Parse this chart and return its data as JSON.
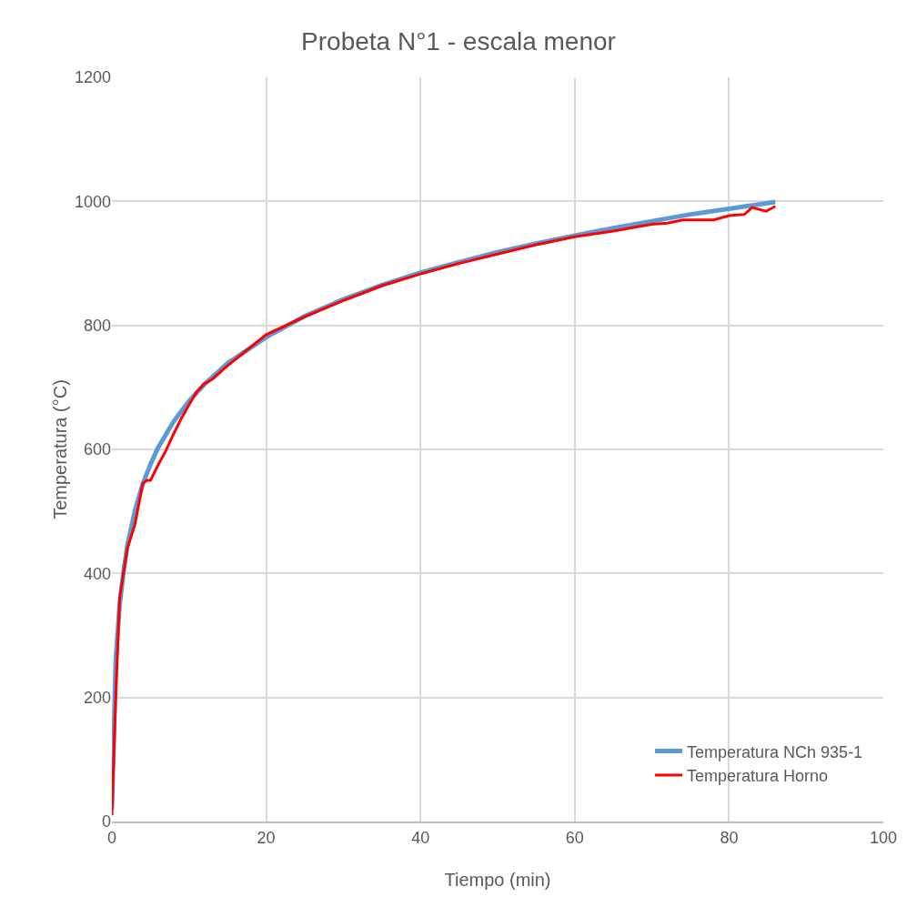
{
  "chart_data": {
    "type": "line",
    "title": "Probeta N°1 - escala menor",
    "xlabel": "Tiempo (min)",
    "ylabel": "Temperatura (°C)",
    "xlim": [
      0,
      100
    ],
    "xticks": [
      0,
      20,
      40,
      60,
      80,
      100
    ],
    "ylim": [
      0,
      1200
    ],
    "yticks": [
      0,
      200,
      400,
      600,
      800,
      1000,
      1200
    ],
    "grid": true,
    "legend": "bottom right",
    "marker": "none",
    "line_style": "solid",
    "series": [
      {
        "name": "Temperatura NCh 935-1",
        "color": "#5b9bd5",
        "x": [
          0,
          0.5,
          1,
          1.5,
          2,
          3,
          4,
          5,
          6,
          8,
          10,
          12,
          15,
          20,
          25,
          30,
          35,
          40,
          45,
          50,
          55,
          60,
          65,
          70,
          75,
          80,
          86
        ],
        "values": [
          20,
          261,
          349,
          402,
          445,
          502,
          544,
          576,
          603,
          645,
          678,
          705,
          739,
          781,
          815,
          842,
          865,
          885,
          902,
          918,
          932,
          945,
          957,
          968,
          979,
          988,
          999
        ]
      },
      {
        "name": "Temperatura Horno",
        "color": "#ff0000",
        "x": [
          0,
          0.5,
          1,
          1.5,
          2,
          3,
          4,
          4.5,
          5,
          6,
          7,
          8,
          9,
          10,
          11,
          12,
          13,
          15,
          18,
          20,
          25,
          30,
          35,
          40,
          45,
          50,
          55,
          60,
          65,
          70,
          72,
          74,
          78,
          80,
          82,
          83,
          84.8,
          86
        ],
        "values": [
          10,
          200,
          360,
          400,
          440,
          480,
          545,
          550,
          550,
          575,
          598,
          625,
          650,
          672,
          693,
          706,
          713,
          735,
          765,
          785,
          814,
          840,
          864,
          883,
          900,
          915,
          930,
          943,
          952,
          963,
          965,
          970,
          970,
          977,
          979,
          990,
          984,
          992
        ]
      }
    ]
  }
}
